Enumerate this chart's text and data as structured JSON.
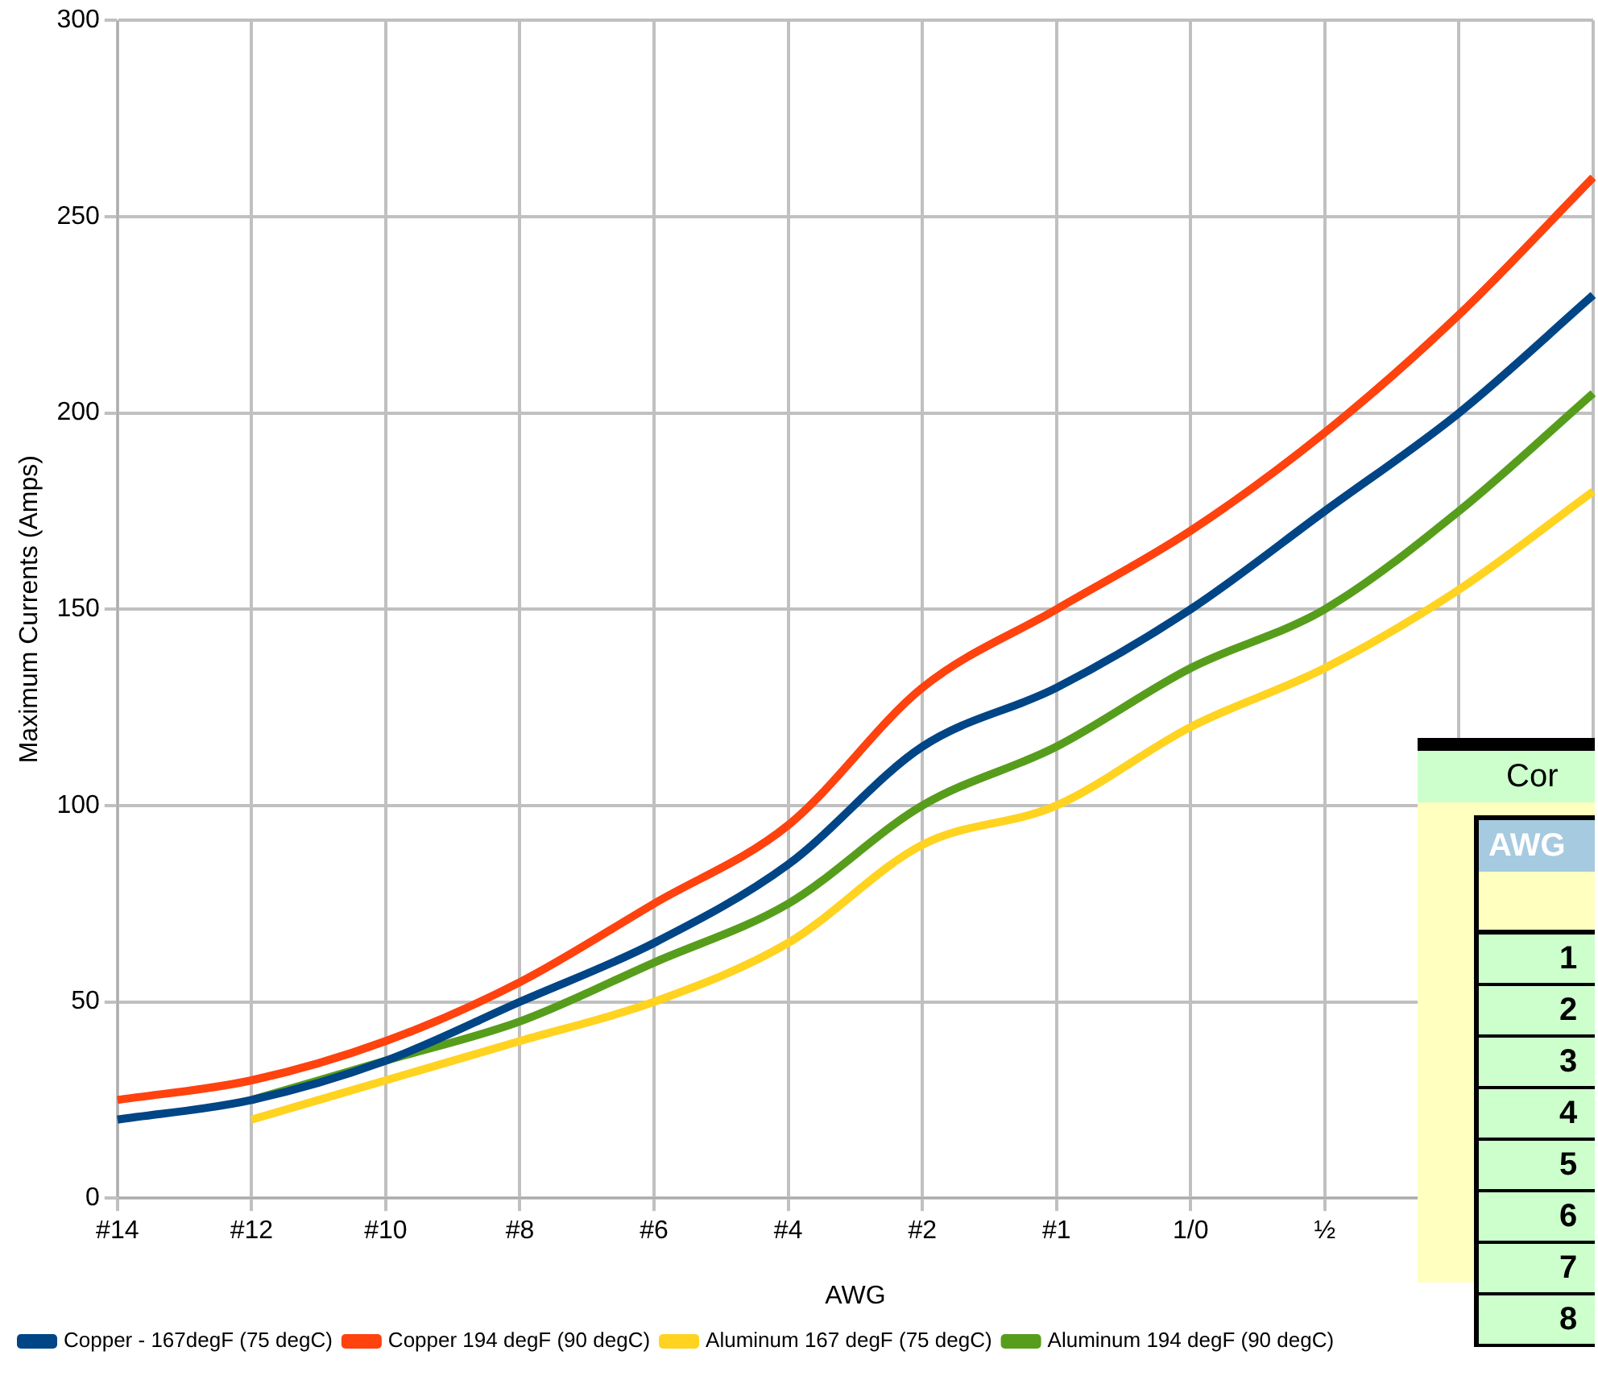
{
  "chart_data": {
    "type": "line",
    "xlabel": "AWG",
    "ylabel": "Maximum Currents (Amps)",
    "categories": [
      "#14",
      "#12",
      "#10",
      "#8",
      "#6",
      "#4",
      "#2",
      "#1",
      "1/0",
      "½",
      null,
      null
    ],
    "series": [
      {
        "name": "Copper - 167degF (75 degC)",
        "color": "#004586",
        "values": [
          20,
          25,
          35,
          50,
          65,
          85,
          115,
          130,
          150,
          175,
          200,
          230
        ]
      },
      {
        "name": "Copper 194 degF (90 degC)",
        "color": "#ff420e",
        "values": [
          25,
          30,
          40,
          55,
          75,
          95,
          130,
          150,
          170,
          195,
          225,
          260
        ]
      },
      {
        "name": "Aluminum 167 degF (75 degC)",
        "color": "#ffd320",
        "values": [
          null,
          20,
          30,
          40,
          50,
          65,
          90,
          100,
          120,
          135,
          155,
          180
        ]
      },
      {
        "name": "Aluminum 194 degF (90 degC)",
        "color": "#579d1c",
        "values": [
          null,
          25,
          35,
          45,
          60,
          75,
          100,
          115,
          135,
          150,
          175,
          205
        ]
      }
    ],
    "ylim": [
      0,
      300
    ],
    "yticks": [
      0,
      50,
      100,
      150,
      200,
      250,
      300
    ],
    "grid": true,
    "legend": "bottom",
    "marker": "none",
    "line_style": "solid",
    "annotations": [
      "Cor",
      "AWG",
      "1",
      "2",
      "3",
      "4",
      "5",
      "6",
      "7",
      "8"
    ]
  }
}
